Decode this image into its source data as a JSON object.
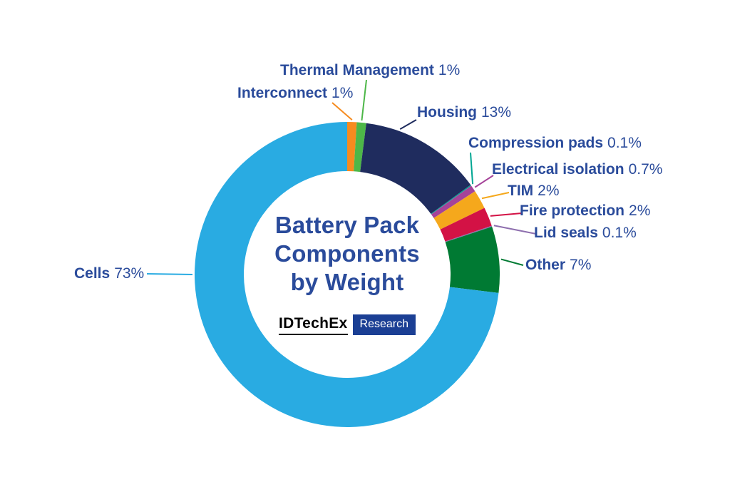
{
  "style": {
    "label_color": "#2A4B9B",
    "brand_box_color": "#1B3F94",
    "background": "#FFFFFF"
  },
  "brand": {
    "name": "IDTechEx",
    "sub": "Research"
  },
  "chart_data": {
    "type": "pie",
    "variant": "donut",
    "title": "Battery Pack Components by Weight",
    "title_lines": [
      "Battery Pack",
      "Components",
      "by Weight"
    ],
    "legend_position": "callout-labels",
    "start_angle": "top",
    "direction": "clockwise",
    "segments": [
      {
        "label": "Interconnect",
        "value": 1,
        "display": "1%",
        "color": "#F68B1F"
      },
      {
        "label": "Thermal Management",
        "value": 1,
        "display": "1%",
        "color": "#4DB748"
      },
      {
        "label": "Housing",
        "value": 13,
        "display": "13%",
        "color": "#1F2C5E"
      },
      {
        "label": "Compression pads",
        "value": 0.1,
        "display": "0.1%",
        "color": "#00A693"
      },
      {
        "label": "Electrical isolation",
        "value": 0.7,
        "display": "0.7%",
        "color": "#A54399"
      },
      {
        "label": "TIM",
        "value": 2,
        "display": "2%",
        "color": "#F5A81C"
      },
      {
        "label": "Fire protection",
        "value": 2,
        "display": "2%",
        "color": "#D31245"
      },
      {
        "label": "Lid seals",
        "value": 0.1,
        "display": "0.1%",
        "color": "#8E6FAE"
      },
      {
        "label": "Other",
        "value": 7,
        "display": "7%",
        "color": "#007A33"
      },
      {
        "label": "Cells",
        "value": 73,
        "display": "73%",
        "color": "#29ABE2"
      }
    ]
  }
}
